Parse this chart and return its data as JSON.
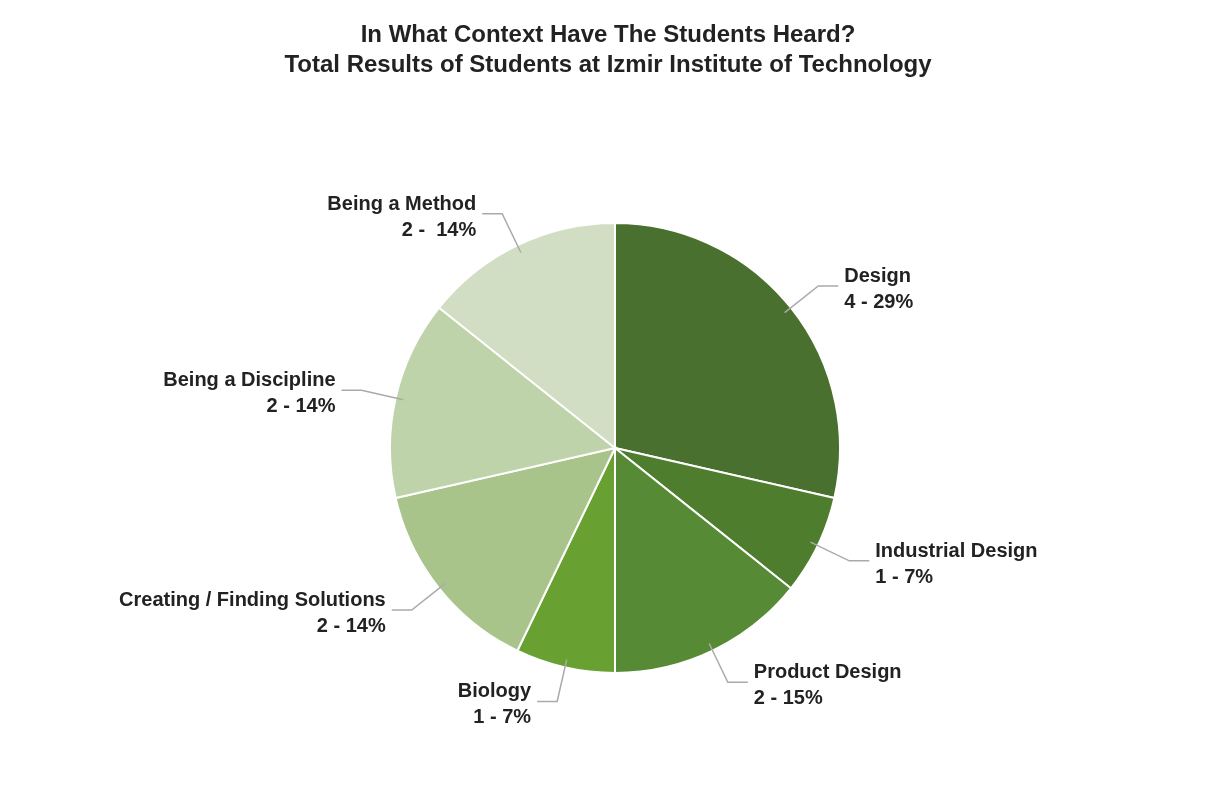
{
  "chart_data": {
    "type": "pie",
    "title": "In What Context Have The Students Heard?\nTotal Results of Students at Izmir Institute of Technology",
    "categories": [
      "Design",
      "Industrial Design",
      "Product Design",
      "Biology",
      "Creating / Finding Solutions",
      "Being a Discipline",
      "Being a Method"
    ],
    "values": [
      4,
      1,
      2,
      1,
      2,
      2,
      2
    ],
    "value_labels": [
      "4 - 29%",
      "1 - 7%",
      "2 - 15%",
      "1 - 7%",
      "2 - 14%",
      "2 - 14%",
      "2 -  14%"
    ],
    "colors": [
      "#4a7030",
      "#4f7d2e",
      "#578a35",
      "#68a032",
      "#a9c48b",
      "#bed3a9",
      "#d1dec3"
    ],
    "legend": false
  }
}
